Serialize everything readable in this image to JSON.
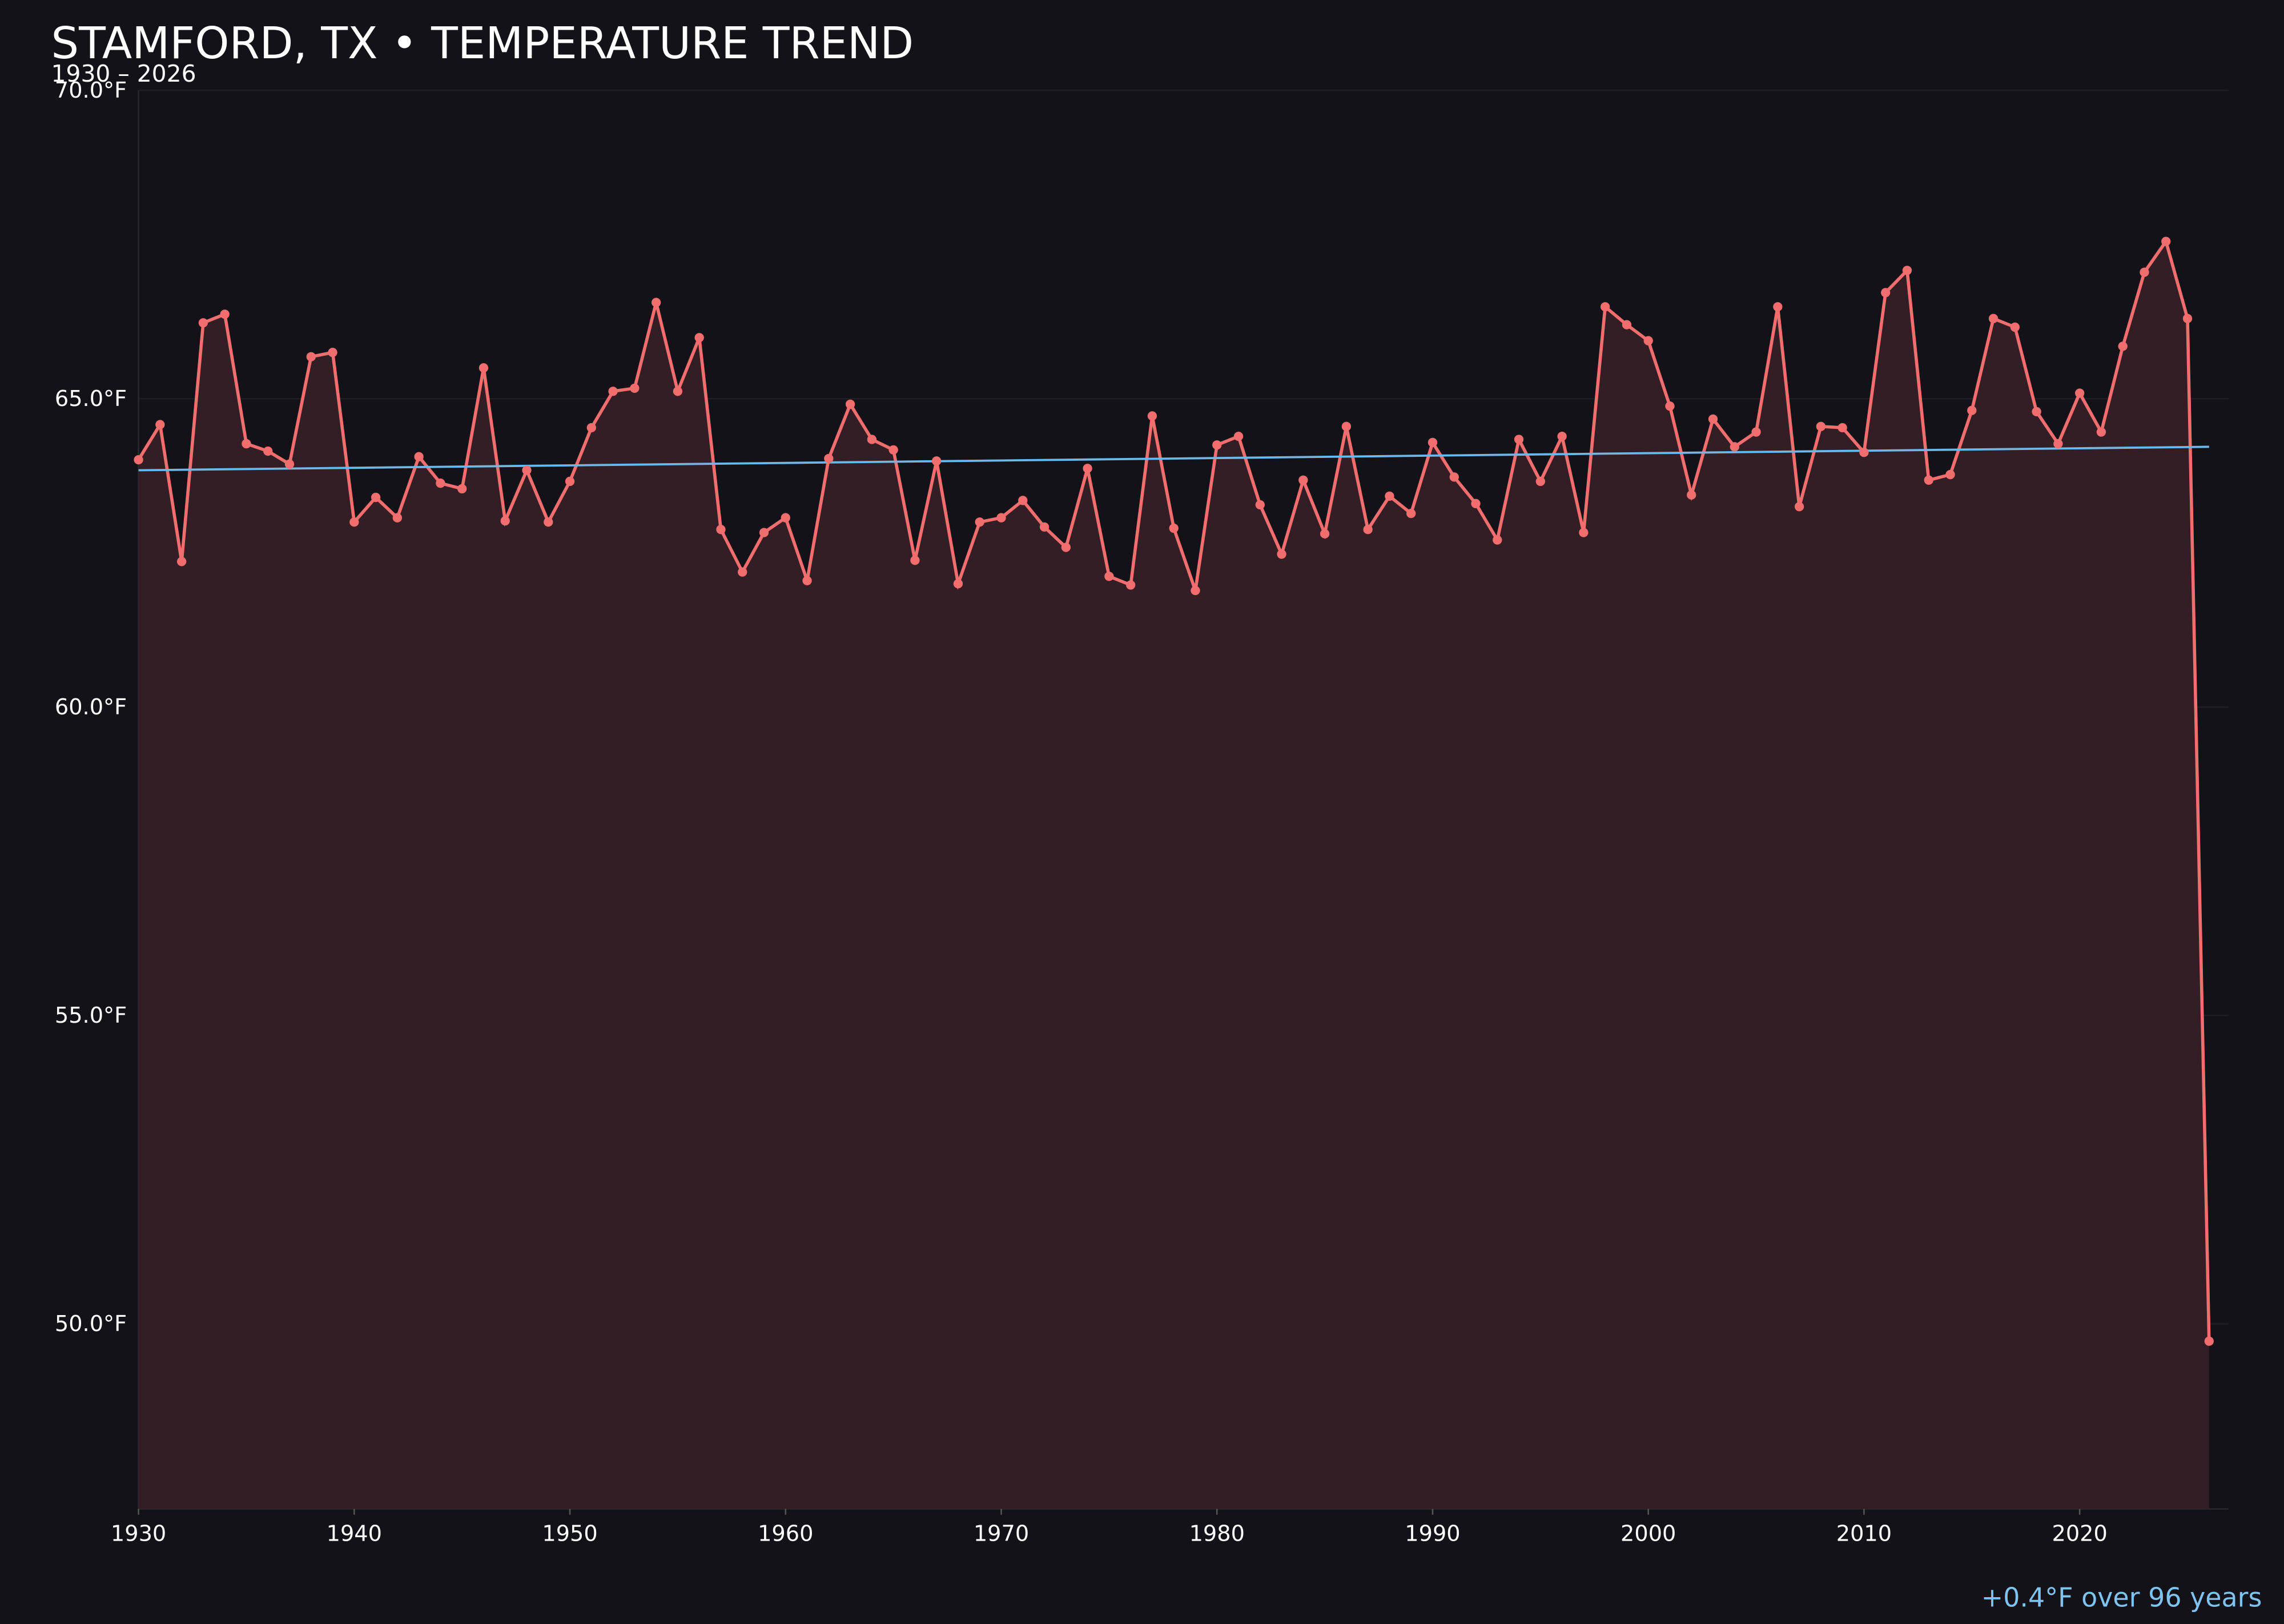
{
  "chart_data": {
    "type": "line",
    "title": "STAMFORD, TX • TEMPERATURE TREND",
    "subtitle": "1930 – 2026",
    "annotation": "+0.4°F over 96 years",
    "x": [
      1930,
      1931,
      1932,
      1933,
      1934,
      1935,
      1936,
      1937,
      1938,
      1939,
      1940,
      1941,
      1942,
      1943,
      1944,
      1945,
      1946,
      1947,
      1948,
      1949,
      1950,
      1951,
      1952,
      1953,
      1954,
      1955,
      1956,
      1957,
      1958,
      1959,
      1960,
      1961,
      1962,
      1963,
      1964,
      1965,
      1966,
      1967,
      1968,
      1969,
      1970,
      1971,
      1972,
      1973,
      1974,
      1975,
      1976,
      1977,
      1978,
      1979,
      1980,
      1981,
      1982,
      1983,
      1984,
      1985,
      1986,
      1987,
      1988,
      1989,
      1990,
      1991,
      1992,
      1993,
      1994,
      1995,
      1996,
      1997,
      1998,
      1999,
      2000,
      2001,
      2002,
      2003,
      2004,
      2005,
      2006,
      2007,
      2008,
      2009,
      2010,
      2011,
      2012,
      2013,
      2014,
      2015,
      2016,
      2017,
      2018,
      2019,
      2020,
      2021,
      2022,
      2023,
      2024,
      2025,
      2026
    ],
    "series": [
      {
        "color": "#f26d6d",
        "fill": "#341e25",
        "values": [
          64.01,
          64.58,
          62.36,
          66.23,
          66.37,
          64.27,
          64.15,
          63.94,
          65.68,
          65.75,
          63.0,
          63.4,
          63.07,
          64.06,
          63.63,
          63.54,
          65.5,
          63.02,
          63.84,
          63.0,
          63.66,
          64.53,
          65.12,
          65.17,
          66.56,
          65.12,
          65.99,
          62.88,
          62.19,
          62.83,
          63.07,
          62.05,
          64.03,
          64.91,
          64.34,
          64.17,
          62.38,
          63.99,
          62.0,
          63.0,
          63.07,
          63.35,
          62.92,
          62.59,
          63.87,
          62.12,
          61.98,
          64.72,
          62.9,
          61.89,
          64.25,
          64.39,
          63.28,
          62.48,
          63.68,
          62.81,
          64.55,
          62.88,
          63.42,
          63.14,
          64.29,
          63.73,
          63.3,
          62.71,
          64.34,
          63.66,
          64.39,
          62.83,
          66.49,
          66.2,
          65.94,
          64.88,
          63.44,
          64.67,
          64.22,
          64.46,
          66.49,
          63.25,
          64.55,
          64.53,
          64.13,
          66.72,
          67.08,
          63.68,
          63.77,
          64.81,
          66.3,
          66.16,
          64.79,
          64.27,
          65.09,
          64.46,
          65.85,
          67.05,
          67.55,
          66.3,
          49.72
        ]
      }
    ],
    "trend": {
      "color": "#6cb8e8",
      "x": [
        1930,
        2026
      ],
      "values": [
        63.84,
        64.22
      ]
    },
    "xlim": [
      1930,
      2026.9
    ],
    "ylim": [
      47.0,
      70.0
    ],
    "xticks": [
      1930,
      1940,
      1950,
      1960,
      1970,
      1980,
      1990,
      2000,
      2010,
      2020
    ],
    "yticks": [
      {
        "value": 50,
        "label": "50.0°F"
      },
      {
        "value": 55,
        "label": "55.0°F"
      },
      {
        "value": 60,
        "label": "60.0°F"
      },
      {
        "value": 65,
        "label": "65.0°F"
      },
      {
        "value": 70,
        "label": "70.0°F"
      }
    ],
    "grid": true
  }
}
